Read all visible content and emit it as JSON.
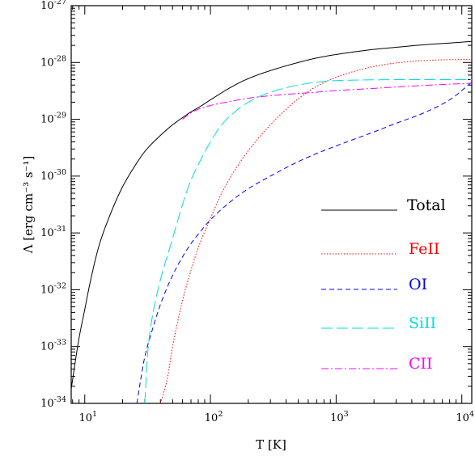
{
  "chart_data": {
    "type": "line",
    "xlabel": "T [K]",
    "ylabel": "Λ [erg cm⁻³ s⁻¹]",
    "xscale": "log",
    "yscale": "log",
    "xlim": [
      7.8,
      12000
    ],
    "ylim": [
      1e-34,
      1e-27
    ],
    "grid": false,
    "legend_position": "right",
    "x_ticks": [
      {
        "value": 10,
        "base": "10",
        "exp": "1"
      },
      {
        "value": 100,
        "base": "10",
        "exp": "2"
      },
      {
        "value": 1000,
        "base": "10",
        "exp": "3"
      },
      {
        "value": 10000,
        "base": "10",
        "exp": "4"
      }
    ],
    "y_ticks": [
      {
        "value": 1e-34,
        "base": "10",
        "exp": "-34"
      },
      {
        "value": 1e-33,
        "base": "10",
        "exp": "-33"
      },
      {
        "value": 1e-32,
        "base": "10",
        "exp": "-32"
      },
      {
        "value": 1e-31,
        "base": "10",
        "exp": "-31"
      },
      {
        "value": 1e-30,
        "base": "10",
        "exp": "-30"
      },
      {
        "value": 1e-29,
        "base": "10",
        "exp": "-29"
      },
      {
        "value": 1e-28,
        "base": "10",
        "exp": "-28"
      },
      {
        "value": 1e-27,
        "base": "10",
        "exp": "-27"
      }
    ],
    "series": [
      {
        "name": "Total",
        "color": "#000000",
        "dash": "none",
        "points": [
          [
            7.8,
            1.8e-34
          ],
          [
            9,
            1.4e-33
          ],
          [
            10,
            4.5e-33
          ],
          [
            11,
            1.3e-32
          ],
          [
            13,
            6e-32
          ],
          [
            15,
            1.5e-31
          ],
          [
            20,
            6.5e-31
          ],
          [
            25,
            1.5e-30
          ],
          [
            30,
            2.7e-30
          ],
          [
            40,
            5.2e-30
          ],
          [
            50,
            8e-30
          ],
          [
            60,
            1.07e-29
          ],
          [
            70,
            1.35e-29
          ],
          [
            80,
            1.6e-29
          ],
          [
            100,
            2.2e-29
          ],
          [
            150,
            3.8e-29
          ],
          [
            200,
            5.2e-29
          ],
          [
            300,
            7.2e-29
          ],
          [
            500,
            1e-28
          ],
          [
            700,
            1.2e-28
          ],
          [
            1000,
            1.38e-28
          ],
          [
            2000,
            1.7e-28
          ],
          [
            3000,
            1.85e-28
          ],
          [
            5000,
            2.05e-28
          ],
          [
            8000,
            2.2e-28
          ],
          [
            12000,
            2.35e-28
          ]
        ]
      },
      {
        "name": "FeII",
        "color": "#ff0000",
        "dash": "1.5 2",
        "points": [
          [
            40,
            1e-34
          ],
          [
            45,
            2.5e-34
          ],
          [
            50,
            1e-33
          ],
          [
            60,
            6.5e-33
          ],
          [
            70,
            2.2e-32
          ],
          [
            80,
            5.5e-32
          ],
          [
            100,
            1.8e-31
          ],
          [
            120,
            4.5e-31
          ],
          [
            150,
            1.1e-30
          ],
          [
            200,
            2.8e-30
          ],
          [
            300,
            8e-30
          ],
          [
            400,
            1.5e-29
          ],
          [
            500,
            2.3e-29
          ],
          [
            700,
            3.8e-29
          ],
          [
            1000,
            5.5e-29
          ],
          [
            2000,
            8.5e-29
          ],
          [
            3000,
            9.8e-29
          ],
          [
            5000,
            1.08e-28
          ],
          [
            8000,
            1.12e-28
          ],
          [
            12000,
            1.13e-28
          ]
        ]
      },
      {
        "name": "OI",
        "color": "#0000ff",
        "dash": "6 4",
        "points": [
          [
            26,
            1e-34
          ],
          [
            28,
            2.8e-34
          ],
          [
            30,
            6.5e-34
          ],
          [
            35,
            2.2e-33
          ],
          [
            40,
            5.5e-33
          ],
          [
            50,
            1.8e-32
          ],
          [
            60,
            3.8e-32
          ],
          [
            70,
            6.5e-32
          ],
          [
            80,
            9.5e-32
          ],
          [
            100,
            1.7e-31
          ],
          [
            150,
            3.8e-31
          ],
          [
            200,
            6e-31
          ],
          [
            300,
            1e-30
          ],
          [
            500,
            1.8e-30
          ],
          [
            700,
            2.5e-30
          ],
          [
            1000,
            3.4e-30
          ],
          [
            2000,
            6e-30
          ],
          [
            3000,
            8.5e-30
          ],
          [
            5000,
            1.3e-29
          ],
          [
            8000,
            2.2e-29
          ],
          [
            12000,
            4.5e-29
          ]
        ]
      },
      {
        "name": "SiII",
        "color": "#00dddd",
        "dash": "14 5",
        "points": [
          [
            30,
            1e-34
          ],
          [
            32,
            1e-33
          ],
          [
            35,
            4e-33
          ],
          [
            40,
            1.5e-32
          ],
          [
            50,
            8e-32
          ],
          [
            60,
            3.2e-31
          ],
          [
            70,
            8.5e-31
          ],
          [
            80,
            1.6e-30
          ],
          [
            100,
            4e-30
          ],
          [
            120,
            7.5e-30
          ],
          [
            150,
            1.25e-29
          ],
          [
            200,
            2e-29
          ],
          [
            300,
            3e-29
          ],
          [
            500,
            4e-29
          ],
          [
            700,
            4.5e-29
          ],
          [
            1000,
            4.8e-29
          ],
          [
            2000,
            4.95e-29
          ],
          [
            5000,
            5e-29
          ],
          [
            12000,
            5e-29
          ]
        ]
      },
      {
        "name": "CII",
        "color": "#ff00ff",
        "dash": "9 3 2 3",
        "points": [
          [
            60,
            1e-29
          ],
          [
            70,
            1.3e-29
          ],
          [
            80,
            1.5e-29
          ],
          [
            100,
            1.75e-29
          ],
          [
            150,
            2.1e-29
          ],
          [
            200,
            2.35e-29
          ],
          [
            300,
            2.6e-29
          ],
          [
            500,
            2.85e-29
          ],
          [
            700,
            3e-29
          ],
          [
            1000,
            3.2e-29
          ],
          [
            2000,
            3.5e-29
          ],
          [
            3000,
            3.7e-29
          ],
          [
            5000,
            3.95e-29
          ],
          [
            8000,
            4.15e-29
          ],
          [
            12000,
            4.3e-29
          ]
        ]
      }
    ]
  }
}
